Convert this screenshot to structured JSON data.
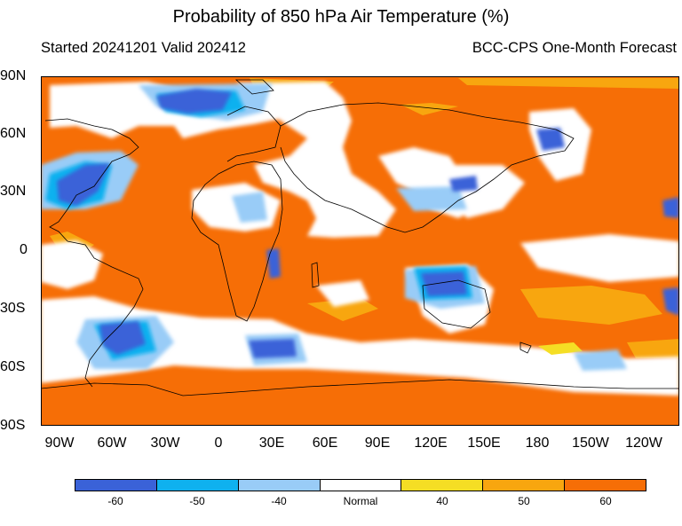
{
  "title": "Probability of 850 hPa Air Temperature (%)",
  "subtitle_left": "Started 20241201  Valid 202412",
  "subtitle_right": "BCC-CPS One-Month Forecast",
  "lat_labels": [
    "90N",
    "60N",
    "30N",
    "0",
    "30S",
    "60S",
    "90S"
  ],
  "lon_labels": [
    "90W",
    "60W",
    "30W",
    "0",
    "30E",
    "60E",
    "90E",
    "120E",
    "150E",
    "180",
    "150W",
    "120W"
  ],
  "legend": {
    "labels": [
      "-60",
      "-50",
      "-40",
      "Normal",
      "40",
      "50",
      "60"
    ],
    "colors": [
      "#3a62d8",
      "#0fb1ef",
      "#99ccf7",
      "#ffffff",
      "#f5de24",
      "#f8a60f",
      "#f66e06"
    ]
  },
  "map_colors": {
    "warm60": "#f66e06",
    "warm50": "#f8a60f",
    "warm40": "#f5de24",
    "normal": "#ffffff",
    "cold40": "#99ccf7",
    "cold50": "#0fb1ef",
    "cold60": "#3a62d8",
    "coast": "#000000"
  }
}
